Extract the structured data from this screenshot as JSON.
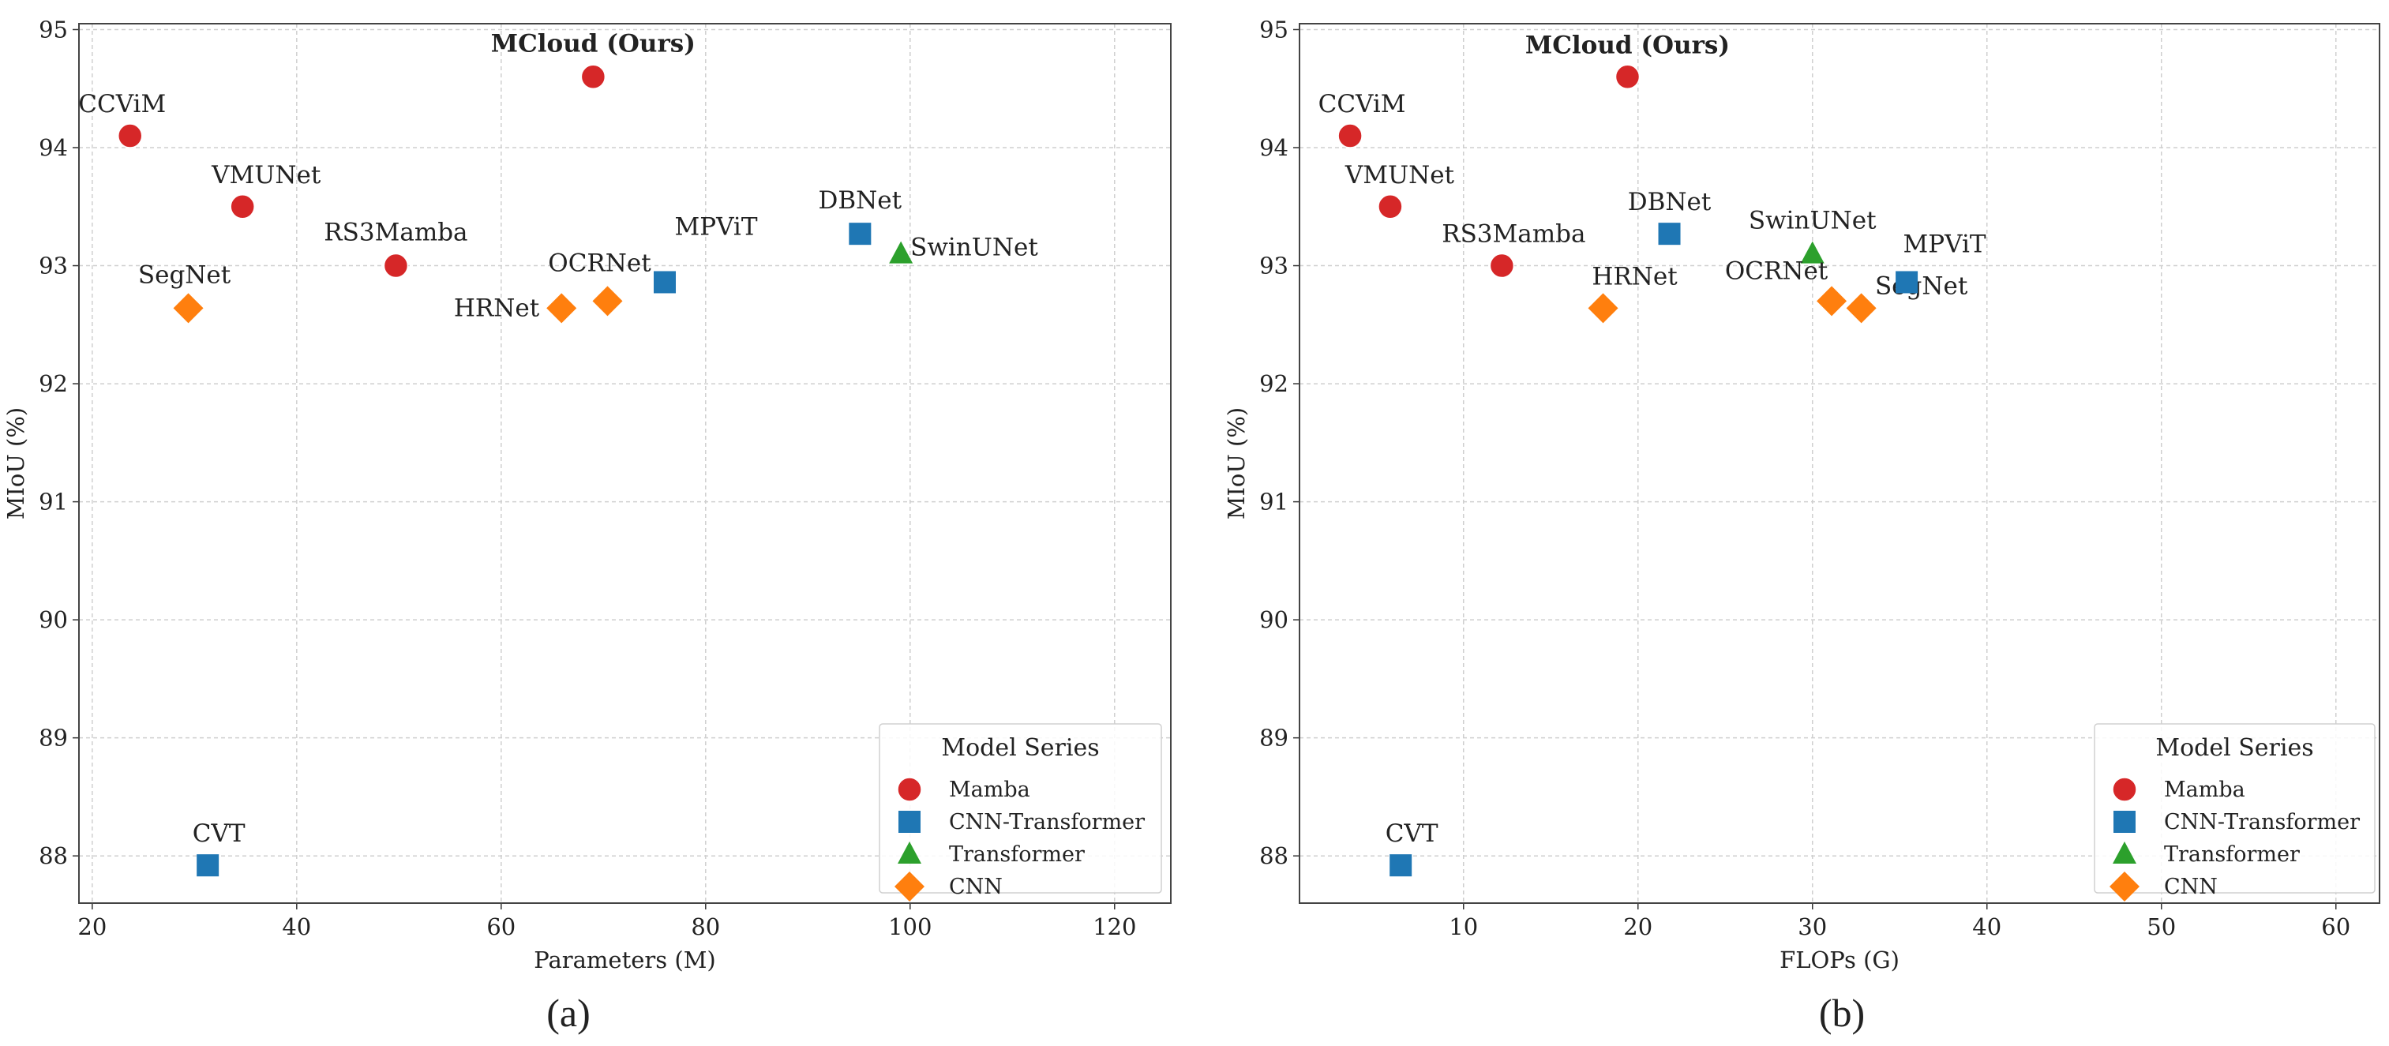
{
  "chart_data": [
    {
      "type": "scatter",
      "panel_label": "(a)",
      "xlabel": "Parameters (M)",
      "ylabel": "MIoU (%)",
      "xlim": [
        18.7,
        125.5
      ],
      "ylim": [
        87.6,
        95.05
      ],
      "xticks": [
        20,
        40,
        60,
        80,
        100,
        120
      ],
      "yticks": [
        88,
        89,
        90,
        91,
        92,
        93,
        94,
        95
      ],
      "grid": true,
      "legend": {
        "title": "Model Series",
        "placement": "bottom-right"
      },
      "points": [
        {
          "name": "MCloud (Ours)",
          "series": "Mamba",
          "x": 69.0,
          "y": 94.6,
          "highlight": true
        },
        {
          "name": "CCViM",
          "series": "Mamba",
          "x": 23.7,
          "y": 94.1
        },
        {
          "name": "VMUNet",
          "series": "Mamba",
          "x": 34.7,
          "y": 93.5
        },
        {
          "name": "RS3Mamba",
          "series": "Mamba",
          "x": 49.7,
          "y": 93.0
        },
        {
          "name": "SegNet",
          "series": "CNN",
          "x": 29.4,
          "y": 92.64
        },
        {
          "name": "HRNet",
          "series": "CNN",
          "x": 65.9,
          "y": 92.64
        },
        {
          "name": "OCRNet",
          "series": "CNN",
          "x": 70.4,
          "y": 92.7
        },
        {
          "name": "MPViT",
          "series": "CNN-Transformer",
          "x": 76.0,
          "y": 92.86
        },
        {
          "name": "DBNet",
          "series": "CNN-Transformer",
          "x": 95.1,
          "y": 93.27
        },
        {
          "name": "SwinUNet",
          "series": "Transformer",
          "x": 99.1,
          "y": 93.1
        },
        {
          "name": "CVT",
          "series": "CNN-Transformer",
          "x": 31.3,
          "y": 87.92
        }
      ]
    },
    {
      "type": "scatter",
      "panel_label": "(b)",
      "xlabel": "FLOPs (G)",
      "ylabel": "MIoU (%)",
      "xlim": [
        0.6,
        62.5
      ],
      "ylim": [
        87.6,
        95.05
      ],
      "xticks": [
        10,
        20,
        30,
        40,
        50,
        60
      ],
      "yticks": [
        88,
        89,
        90,
        91,
        92,
        93,
        94,
        95
      ],
      "grid": true,
      "legend": {
        "title": "Model Series",
        "placement": "bottom-right"
      },
      "points": [
        {
          "name": "MCloud (Ours)",
          "series": "Mamba",
          "x": 19.4,
          "y": 94.6,
          "highlight": true
        },
        {
          "name": "CCViM",
          "series": "Mamba",
          "x": 3.5,
          "y": 94.1
        },
        {
          "name": "VMUNet",
          "series": "Mamba",
          "x": 5.8,
          "y": 93.5
        },
        {
          "name": "RS3Mamba",
          "series": "Mamba",
          "x": 12.2,
          "y": 93.0
        },
        {
          "name": "HRNet",
          "series": "CNN",
          "x": 18.0,
          "y": 92.64
        },
        {
          "name": "DBNet",
          "series": "CNN-Transformer",
          "x": 21.8,
          "y": 93.27
        },
        {
          "name": "SwinUNet",
          "series": "Transformer",
          "x": 30.0,
          "y": 93.1
        },
        {
          "name": "OCRNet",
          "series": "CNN",
          "x": 31.1,
          "y": 92.7
        },
        {
          "name": "SegNet",
          "series": "CNN",
          "x": 32.8,
          "y": 92.64
        },
        {
          "name": "MPViT",
          "series": "CNN-Transformer",
          "x": 35.4,
          "y": 92.86
        },
        {
          "name": "CVT",
          "series": "CNN-Transformer",
          "x": 6.4,
          "y": 87.92
        }
      ]
    }
  ],
  "series": [
    {
      "name": "Mamba",
      "marker": "circle",
      "color": "#d62728"
    },
    {
      "name": "CNN-Transformer",
      "marker": "square",
      "color": "#1f77b4"
    },
    {
      "name": "Transformer",
      "marker": "triangle",
      "color": "#2ca02c"
    },
    {
      "name": "CNN",
      "marker": "diamond",
      "color": "#ff7f0e"
    }
  ]
}
